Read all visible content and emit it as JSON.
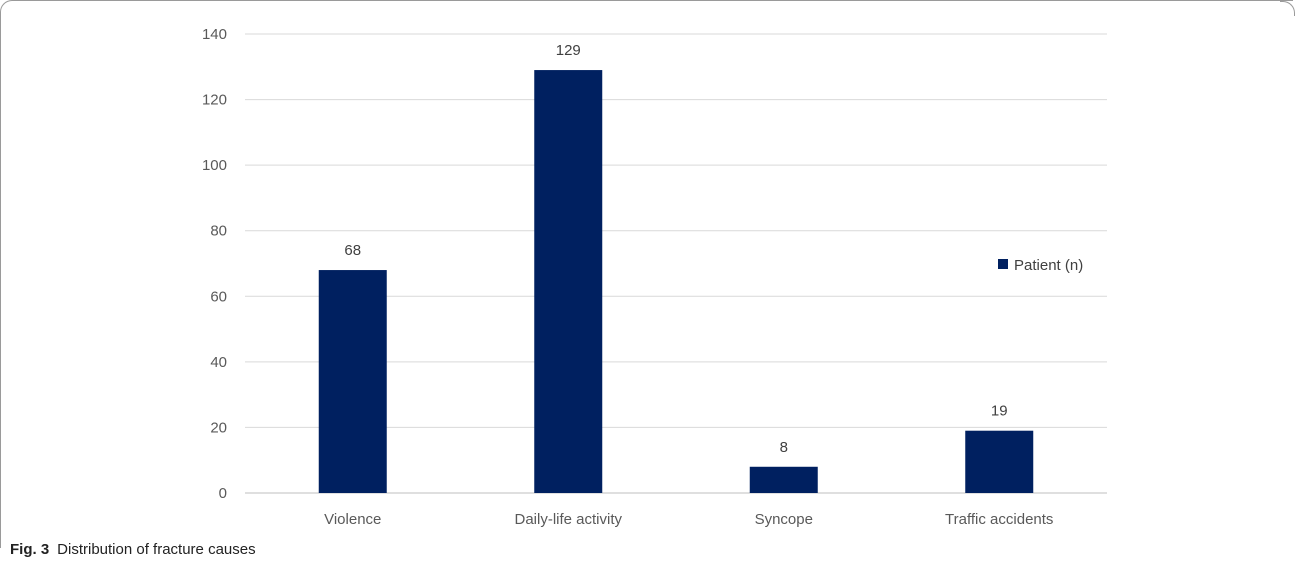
{
  "caption": {
    "label": "Fig. 3",
    "text": "Distribution of fracture causes"
  },
  "chart_data": {
    "type": "bar",
    "categories": [
      "Violence",
      "Daily-life activity",
      "Syncope",
      "Traffic accidents"
    ],
    "series": [
      {
        "name": "Patient (n)",
        "values": [
          68,
          129,
          8,
          19
        ],
        "color": "#002060"
      }
    ],
    "ylim": [
      0,
      140
    ],
    "yticks": [
      0,
      20,
      40,
      60,
      80,
      100,
      120,
      140
    ],
    "grid": true,
    "legend": "right",
    "data_labels": true
  }
}
